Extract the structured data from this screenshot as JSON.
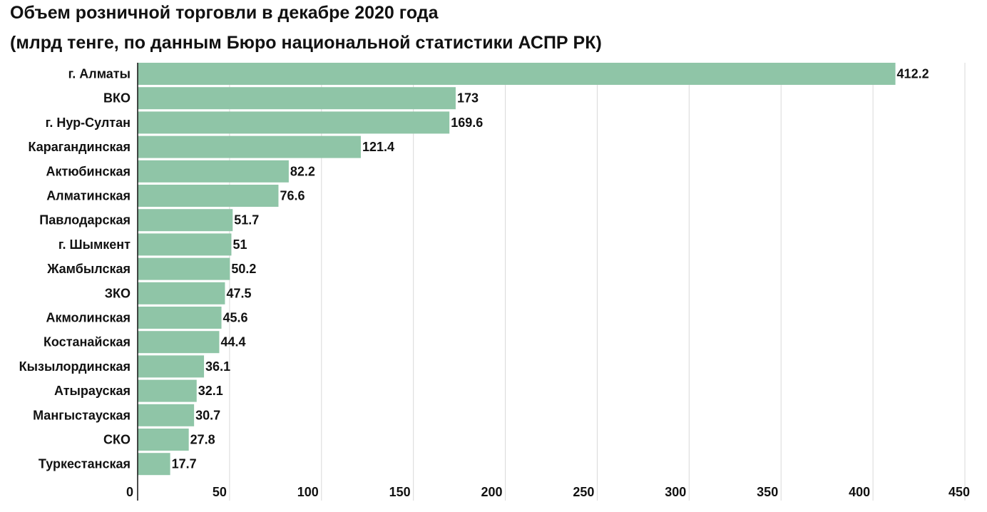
{
  "title_line1": "Объем розничной торговли в декабре 2020 года",
  "title_line2": "(млрд тенге, по данным Бюро национальной статистики АСПР РК)",
  "chart_data": {
    "type": "bar",
    "orientation": "horizontal",
    "title": "Объем розничной торговли в декабре 2020 года (млрд тенге, по данным Бюро национальной статистики АСПР РК)",
    "xlabel": "",
    "ylabel": "",
    "xlim": [
      0,
      450
    ],
    "xticks": [
      0,
      50,
      100,
      150,
      200,
      250,
      300,
      350,
      400,
      450
    ],
    "grid": true,
    "legend": "none",
    "bar_color": "#8fc5a7",
    "categories": [
      "г. Алматы",
      "ВКО",
      "г. Нур-Султан",
      "Карагандинская",
      "Актюбинская",
      "Алматинская",
      "Павлодарская",
      "г. Шымкент",
      "Жамбылская",
      "ЗКО",
      "Акмолинская",
      "Костанайская",
      "Кызылординская",
      "Атырауская",
      "Мангыстауская",
      "СКО",
      "Туркестанская"
    ],
    "values": [
      412.2,
      173,
      169.6,
      121.4,
      82.2,
      76.6,
      51.7,
      51,
      50.2,
      47.5,
      45.6,
      44.4,
      36.1,
      32.1,
      30.7,
      27.8,
      17.7
    ],
    "data_labels": [
      "412.2",
      "173",
      "169.6",
      "121.4",
      "82.2",
      "76.6",
      "51.7",
      "51",
      "50.2",
      "47.5",
      "45.6",
      "44.4",
      "36.1",
      "32.1",
      "30.7",
      "27.8",
      "17.7"
    ]
  }
}
